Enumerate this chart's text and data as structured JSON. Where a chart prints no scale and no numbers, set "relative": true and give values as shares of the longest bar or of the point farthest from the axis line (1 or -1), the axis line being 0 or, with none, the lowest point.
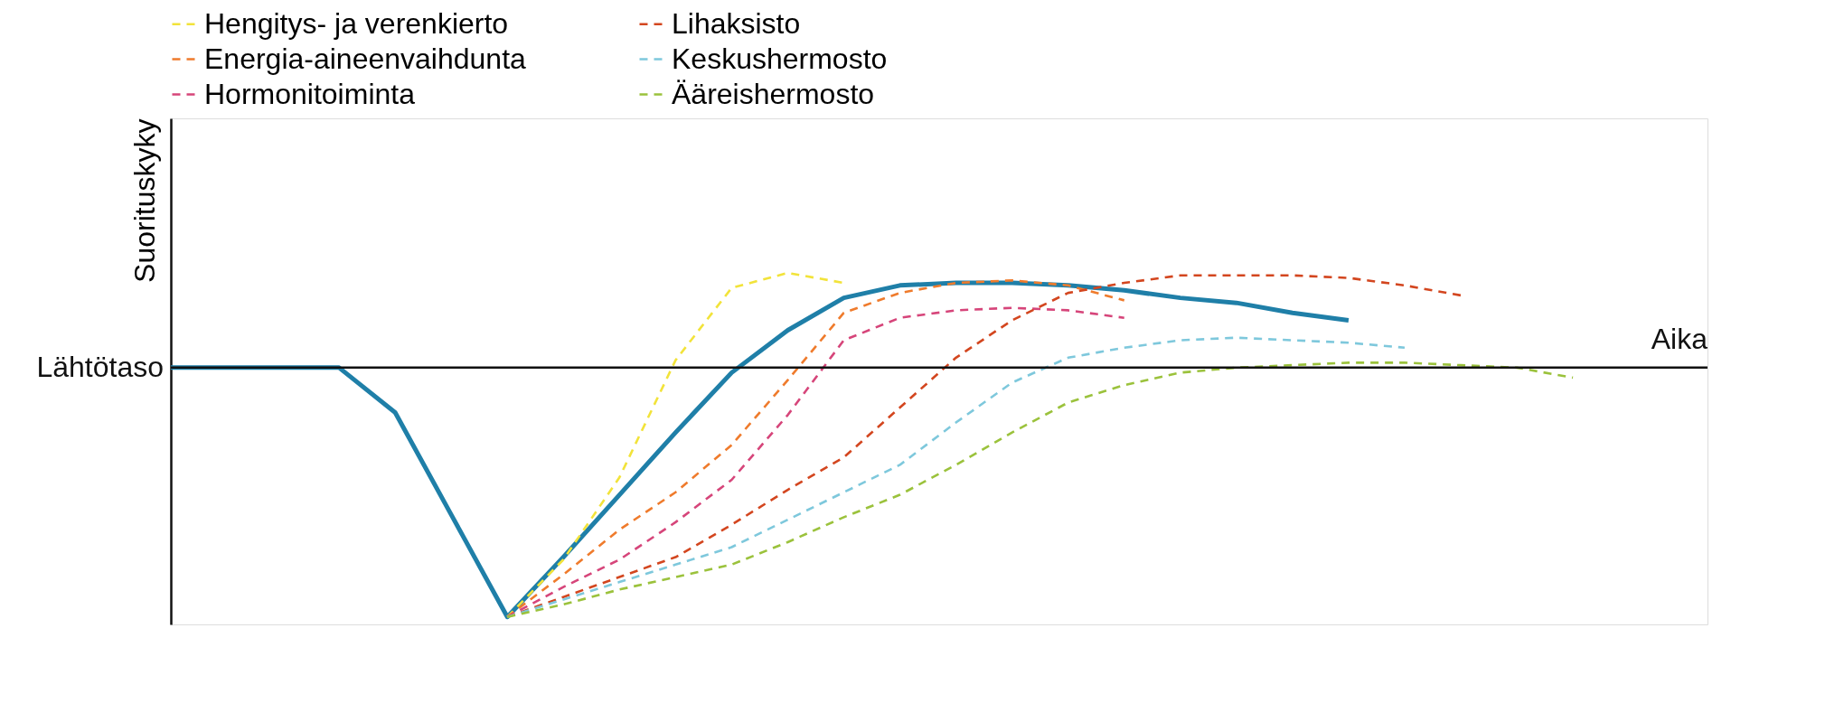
{
  "chart_data": {
    "type": "line",
    "relative": true,
    "xlabel": "Aika",
    "ylabel": "Suorituskyky",
    "legend": "top",
    "annotations": [
      "Lähtötaso"
    ],
    "categories": [
      null,
      null,
      null,
      null,
      null,
      null,
      null,
      null,
      null,
      null,
      null,
      null,
      null,
      null,
      null,
      null,
      null,
      null,
      null,
      null,
      null,
      null,
      null,
      null,
      null,
      null
    ],
    "series": [
      {
        "color": "#1f7fa8",
        "line_style": "solid",
        "values": [
          0,
          0,
          0,
          0,
          -0.18,
          -0.59,
          -1,
          -0.76,
          -0.51,
          -0.26,
          -0.02,
          0.15,
          0.28,
          0.33,
          0.34,
          0.34,
          0.33,
          0.31,
          0.28,
          0.26,
          0.22,
          0.19,
          null,
          null,
          null,
          null
        ]
      },
      {
        "name": "Hengitys- ja verenkierto",
        "color": "#f2e33a",
        "line_style": "dashed",
        "values": [
          null,
          null,
          null,
          null,
          null,
          null,
          -1,
          -0.77,
          -0.44,
          0.03,
          0.32,
          0.38,
          0.34,
          null,
          null,
          null,
          null,
          null,
          null,
          null,
          null,
          null,
          null,
          null,
          null,
          null
        ]
      },
      {
        "name": "Energia-aineenvaihdunta",
        "color": "#ef7b2c",
        "line_style": "dashed",
        "values": [
          null,
          null,
          null,
          null,
          null,
          null,
          -1,
          -0.83,
          -0.65,
          -0.5,
          -0.31,
          -0.05,
          0.22,
          0.3,
          0.34,
          0.35,
          0.33,
          0.27,
          null,
          null,
          null,
          null,
          null,
          null,
          null,
          null
        ]
      },
      {
        "name": "Hormonitoiminta",
        "color": "#d6457a",
        "line_style": "dashed",
        "values": [
          null,
          null,
          null,
          null,
          null,
          null,
          -1,
          -0.88,
          -0.77,
          -0.62,
          -0.45,
          -0.19,
          0.11,
          0.2,
          0.23,
          0.24,
          0.23,
          0.2,
          null,
          null,
          null,
          null,
          null,
          null,
          null,
          null
        ]
      },
      {
        "name": "Lihaksisto",
        "color": "#d3461f",
        "line_style": "dashed",
        "values": [
          null,
          null,
          null,
          null,
          null,
          null,
          -1,
          -0.92,
          -0.84,
          -0.76,
          -0.63,
          -0.49,
          -0.36,
          -0.16,
          0.04,
          0.19,
          0.3,
          0.34,
          0.37,
          0.37,
          0.37,
          0.36,
          0.33,
          0.29,
          null,
          null
        ]
      },
      {
        "name": "Keskushermosto",
        "color": "#7ec8dc",
        "line_style": "dashed",
        "values": [
          null,
          null,
          null,
          null,
          null,
          null,
          -1,
          -0.93,
          -0.86,
          -0.79,
          -0.72,
          -0.61,
          -0.5,
          -0.39,
          -0.22,
          -0.06,
          0.04,
          0.08,
          0.11,
          0.12,
          0.11,
          0.1,
          0.08,
          null,
          null,
          null
        ]
      },
      {
        "name": "Ääreishermosto",
        "color": "#9bc23c",
        "line_style": "dashed",
        "values": [
          null,
          null,
          null,
          null,
          null,
          null,
          -1,
          -0.95,
          -0.89,
          -0.84,
          -0.79,
          -0.7,
          -0.6,
          -0.51,
          -0.39,
          -0.26,
          -0.14,
          -0.07,
          -0.02,
          0,
          0.01,
          0.02,
          0.02,
          0.01,
          0,
          -0.04
        ]
      }
    ]
  }
}
